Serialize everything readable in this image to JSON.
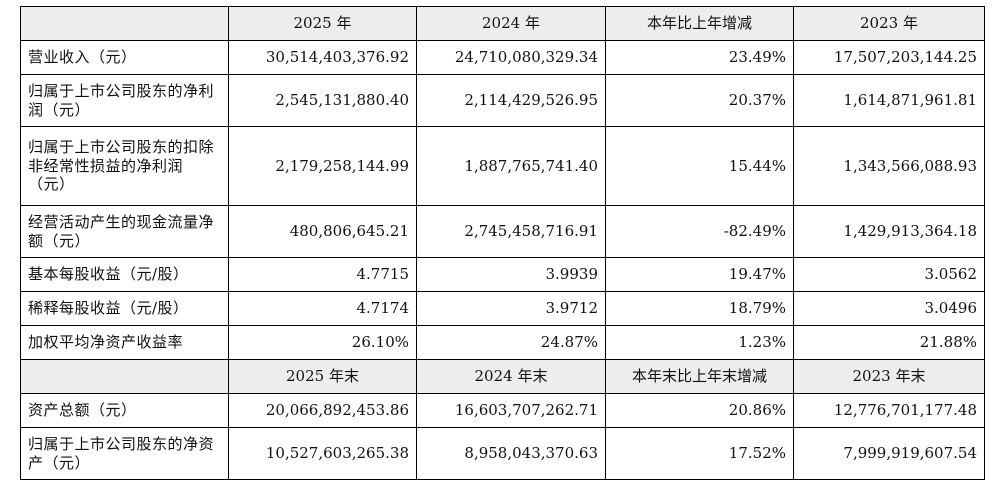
{
  "header_row_1": [
    "",
    "2025 年",
    "2024 年",
    "本年比上年增减",
    "2023 年"
  ],
  "rows_1": [
    {
      "label": "营业收入（元）",
      "v2025": "30,514,403,376.92",
      "v2024": "24,710,080,329.34",
      "change": "23.49%",
      "v2023": "17,507,203,144.25",
      "size": "r1"
    },
    {
      "label": "归属于上市公司股东的净利润（元）",
      "v2025": "2,545,131,880.40",
      "v2024": "2,114,429,526.95",
      "change": "20.37%",
      "v2023": "1,614,871,961.81",
      "size": "r2"
    },
    {
      "label": "归属于上市公司股东的扣除非经常性损益的净利润（元）",
      "v2025": "2,179,258,144.99",
      "v2024": "1,887,765,741.40",
      "change": "15.44%",
      "v2023": "1,343,566,088.93",
      "size": "r3"
    },
    {
      "label": "经营活动产生的现金流量净额（元）",
      "v2025": "480,806,645.21",
      "v2024": "2,745,458,716.91",
      "change": "-82.49%",
      "v2023": "1,429,913,364.18",
      "size": "r2"
    },
    {
      "label": "基本每股收益（元/股）",
      "v2025": "4.7715",
      "v2024": "3.9939",
      "change": "19.47%",
      "v2023": "3.0562",
      "size": "r1"
    },
    {
      "label": "稀释每股收益（元/股）",
      "v2025": "4.7174",
      "v2024": "3.9712",
      "change": "18.79%",
      "v2023": "3.0496",
      "size": "r1"
    },
    {
      "label": "加权平均净资产收益率",
      "v2025": "26.10%",
      "v2024": "24.87%",
      "change": "1.23%",
      "v2023": "21.88%",
      "size": "r1"
    }
  ],
  "header_row_2": [
    "",
    "2025 年末",
    "2024 年末",
    "本年末比上年末增减",
    "2023 年末"
  ],
  "rows_2": [
    {
      "label": "资产总额（元）",
      "v2025": "20,066,892,453.86",
      "v2024": "16,603,707,262.71",
      "change": "20.86%",
      "v2023": "12,776,701,177.48",
      "size": "r1"
    },
    {
      "label": "归属于上市公司股东的净资产（元）",
      "v2025": "10,527,603,265.38",
      "v2024": "8,958,043,370.63",
      "change": "17.52%",
      "v2023": "7,999,919,607.54",
      "size": "r2"
    }
  ]
}
